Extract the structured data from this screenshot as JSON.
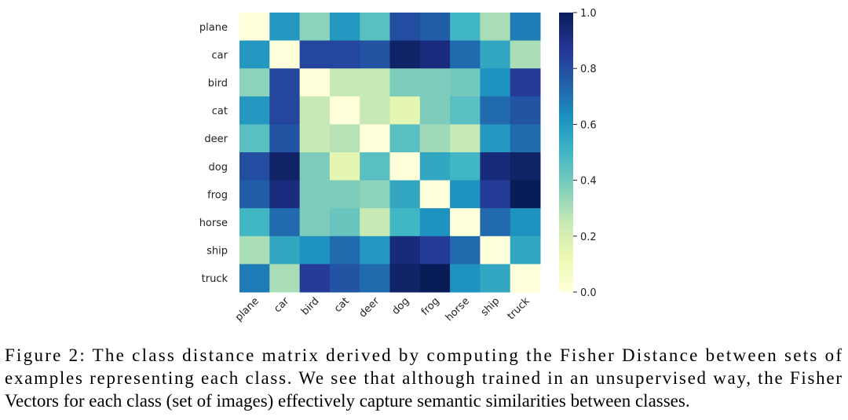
{
  "chart_data": {
    "type": "heatmap",
    "categories": [
      "plane",
      "car",
      "bird",
      "cat",
      "deer",
      "dog",
      "frog",
      "horse",
      "ship",
      "truck"
    ],
    "z": [
      [
        0.0,
        0.6,
        0.35,
        0.6,
        0.45,
        0.8,
        0.75,
        0.5,
        0.3,
        0.68
      ],
      [
        0.6,
        0.0,
        0.82,
        0.82,
        0.78,
        0.97,
        0.92,
        0.72,
        0.55,
        0.3
      ],
      [
        0.35,
        0.82,
        0.0,
        0.25,
        0.25,
        0.38,
        0.38,
        0.4,
        0.62,
        0.85
      ],
      [
        0.6,
        0.82,
        0.25,
        0.0,
        0.25,
        0.15,
        0.38,
        0.45,
        0.72,
        0.78
      ],
      [
        0.45,
        0.78,
        0.25,
        0.28,
        0.0,
        0.45,
        0.32,
        0.25,
        0.6,
        0.72
      ],
      [
        0.8,
        0.97,
        0.38,
        0.15,
        0.45,
        0.0,
        0.55,
        0.5,
        0.93,
        0.97
      ],
      [
        0.75,
        0.92,
        0.38,
        0.38,
        0.35,
        0.55,
        0.0,
        0.62,
        0.85,
        1.0
      ],
      [
        0.5,
        0.72,
        0.38,
        0.42,
        0.25,
        0.5,
        0.62,
        0.0,
        0.72,
        0.62
      ],
      [
        0.3,
        0.55,
        0.62,
        0.72,
        0.6,
        0.93,
        0.85,
        0.72,
        0.0,
        0.55
      ],
      [
        0.68,
        0.3,
        0.85,
        0.78,
        0.72,
        0.97,
        1.0,
        0.62,
        0.55,
        0.0
      ]
    ],
    "colormap": [
      "#ffffd9",
      "#edf8b1",
      "#c7e9b4",
      "#7fcdbb",
      "#41b6c4",
      "#1d91c0",
      "#225ea8",
      "#253494",
      "#081d58"
    ],
    "zlim": [
      0,
      1
    ],
    "zticks": [
      {
        "value": 0,
        "label": "0.0"
      },
      {
        "value": 0.2,
        "label": "0.2"
      },
      {
        "value": 0.4,
        "label": "0.4"
      },
      {
        "value": 0.6,
        "label": "0.6"
      },
      {
        "value": 0.8,
        "label": "0.8"
      },
      {
        "value": 1,
        "label": "1.0"
      }
    ],
    "caption": [
      "Figure 2: The class distance matrix derived by computing the Fisher Distance between sets of",
      "examples representing each class. We see that although trained in an unsupervised way, the Fisher",
      "Vectors for each class (set of images) effectively capture semantic similarities between classes."
    ]
  }
}
